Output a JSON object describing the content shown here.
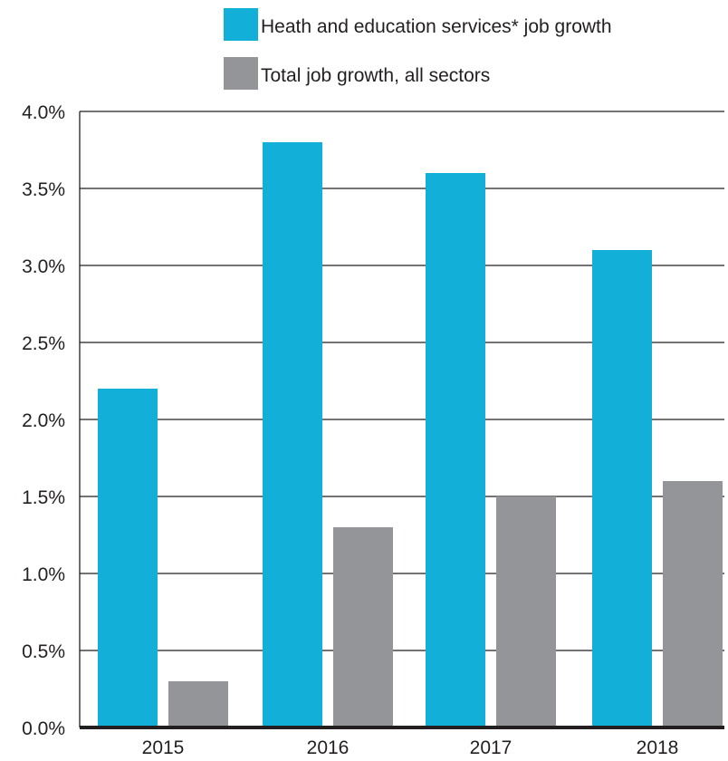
{
  "chart_data": {
    "type": "bar",
    "categories": [
      "2015",
      "2016",
      "2017",
      "2018"
    ],
    "series": [
      {
        "name": "Heath and education services* job growth",
        "values": [
          2.2,
          3.8,
          3.6,
          3.1
        ],
        "color": "#12afd9"
      },
      {
        "name": "Total job growth, all sectors",
        "values": [
          0.3,
          1.3,
          1.5,
          1.6
        ],
        "color": "#939598"
      }
    ],
    "y_ticks": [
      "0.0%",
      "0.5%",
      "1.0%",
      "1.5%",
      "2.0%",
      "2.5%",
      "3.0%",
      "3.5%",
      "4.0%"
    ],
    "ylim": [
      0,
      4.0
    ],
    "y_unit": "%",
    "grid": true,
    "legend_position": "top-right",
    "title": "",
    "xlabel": "",
    "ylabel": ""
  }
}
